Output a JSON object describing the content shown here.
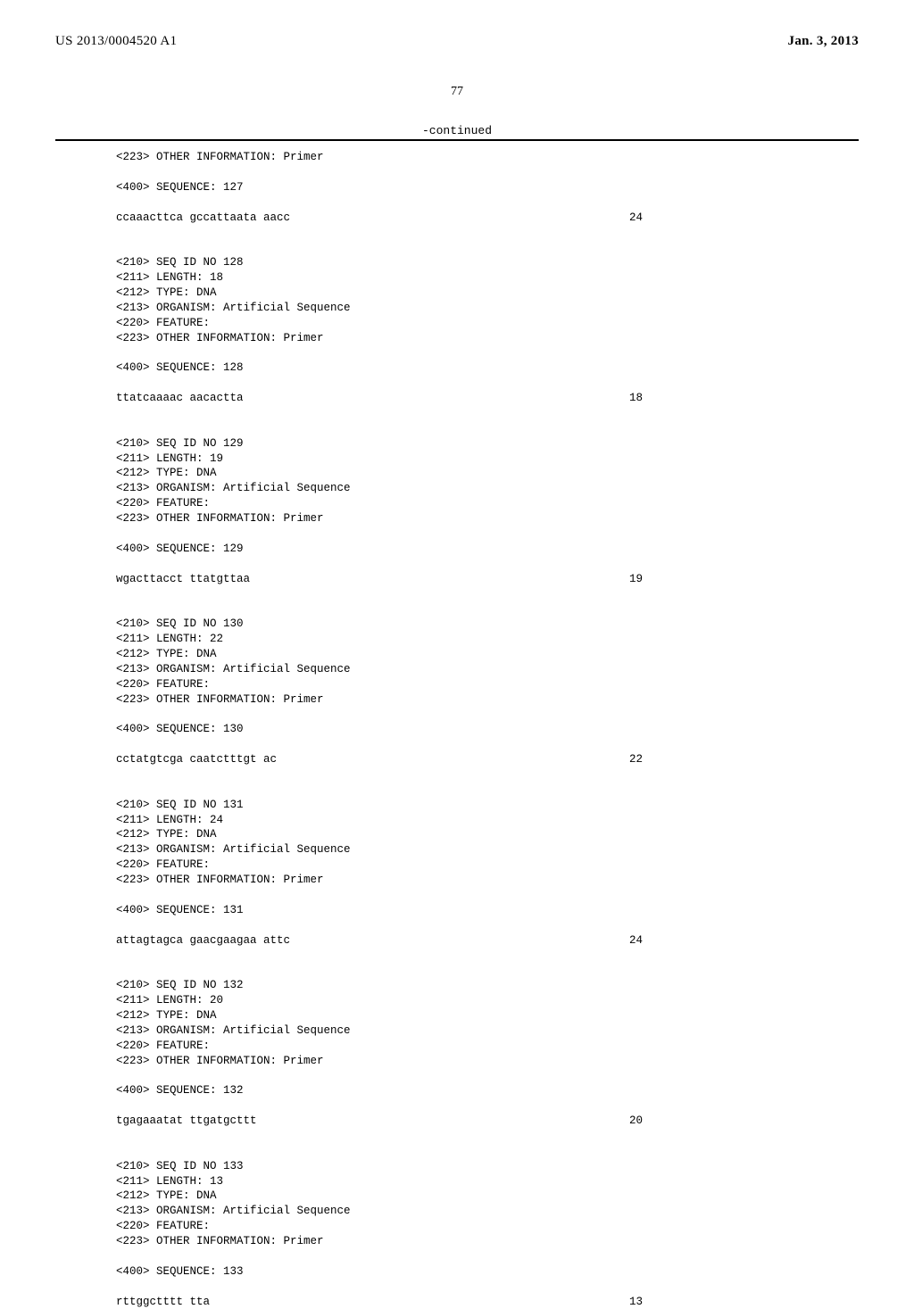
{
  "header": {
    "publication_number": "US 2013/0004520 A1",
    "date": "Jan. 3, 2013"
  },
  "page_number": "77",
  "continued_label": "-continued",
  "blocks": [
    {
      "pre_lines": [
        "<223> OTHER INFORMATION: Primer"
      ],
      "seq_label": "<400> SEQUENCE: 127",
      "sequence": "ccaaacttca gccattaata aacc",
      "length": "24"
    },
    {
      "pre_lines": [
        "<210> SEQ ID NO 128",
        "<211> LENGTH: 18",
        "<212> TYPE: DNA",
        "<213> ORGANISM: Artificial Sequence",
        "<220> FEATURE:",
        "<223> OTHER INFORMATION: Primer"
      ],
      "seq_label": "<400> SEQUENCE: 128",
      "sequence": "ttatcaaaac aacactta",
      "length": "18"
    },
    {
      "pre_lines": [
        "<210> SEQ ID NO 129",
        "<211> LENGTH: 19",
        "<212> TYPE: DNA",
        "<213> ORGANISM: Artificial Sequence",
        "<220> FEATURE:",
        "<223> OTHER INFORMATION: Primer"
      ],
      "seq_label": "<400> SEQUENCE: 129",
      "sequence": "wgacttacct ttatgttaa",
      "length": "19"
    },
    {
      "pre_lines": [
        "<210> SEQ ID NO 130",
        "<211> LENGTH: 22",
        "<212> TYPE: DNA",
        "<213> ORGANISM: Artificial Sequence",
        "<220> FEATURE:",
        "<223> OTHER INFORMATION: Primer"
      ],
      "seq_label": "<400> SEQUENCE: 130",
      "sequence": "cctatgtcga caatctttgt ac",
      "length": "22"
    },
    {
      "pre_lines": [
        "<210> SEQ ID NO 131",
        "<211> LENGTH: 24",
        "<212> TYPE: DNA",
        "<213> ORGANISM: Artificial Sequence",
        "<220> FEATURE:",
        "<223> OTHER INFORMATION: Primer"
      ],
      "seq_label": "<400> SEQUENCE: 131",
      "sequence": "attagtagca gaacgaagaa attc",
      "length": "24"
    },
    {
      "pre_lines": [
        "<210> SEQ ID NO 132",
        "<211> LENGTH: 20",
        "<212> TYPE: DNA",
        "<213> ORGANISM: Artificial Sequence",
        "<220> FEATURE:",
        "<223> OTHER INFORMATION: Primer"
      ],
      "seq_label": "<400> SEQUENCE: 132",
      "sequence": "tgagaaatat ttgatgcttt",
      "length": "20"
    },
    {
      "pre_lines": [
        "<210> SEQ ID NO 133",
        "<211> LENGTH: 13",
        "<212> TYPE: DNA",
        "<213> ORGANISM: Artificial Sequence",
        "<220> FEATURE:",
        "<223> OTHER INFORMATION: Primer"
      ],
      "seq_label": "<400> SEQUENCE: 133",
      "sequence": "rttggctttt tta",
      "length": "13"
    }
  ]
}
